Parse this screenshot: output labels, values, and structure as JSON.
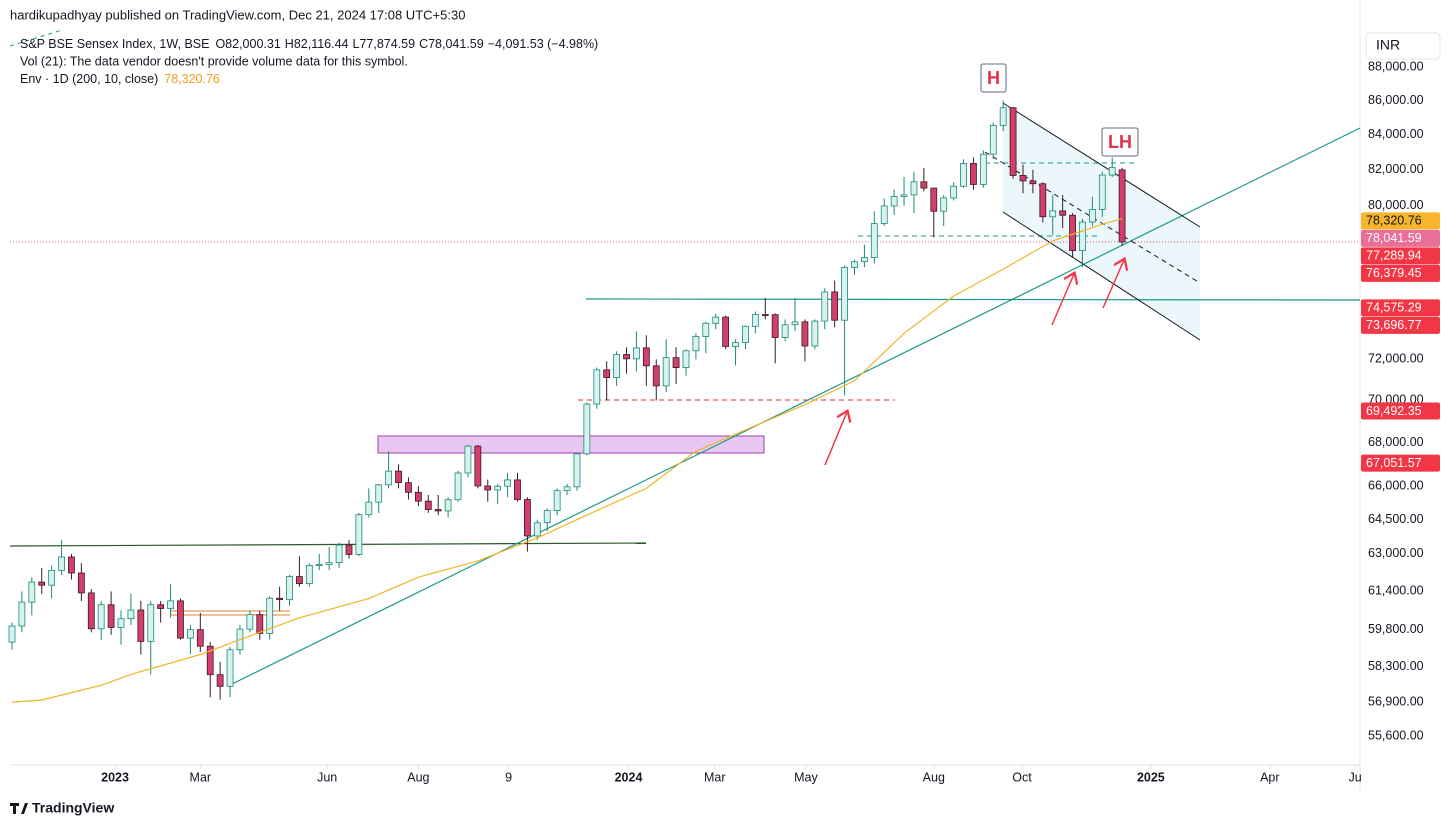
{
  "header": {
    "published": "hardikupadhyay published on TradingView.com, Dec 21, 2024 17:08 UTC+5:30",
    "ohlc": [
      "O82,000.31",
      "H82,116.44",
      "L77,874.59",
      "C78,041.59",
      "−4,091.53 (−4.98%)"
    ],
    "volume": "Vol (21): The data vendor doesn't provide volume data for this symbol.",
    "currency": "INR",
    "logo": "TradingView"
  },
  "chart_data": {
    "type": "candlestick",
    "title": "S&P BSE Sensex Index, 1W, BSE",
    "log_scale": true,
    "grid": false,
    "up_color": "#1b8a7a",
    "up_fill": "#d8f3ef",
    "down_color": "#d23f6b",
    "ylim": [
      54504,
      92140
    ],
    "xlim": [
      -0.2,
      136
    ],
    "yticks": [
      {
        "value": 55600,
        "label": "55,600.00"
      },
      {
        "value": 56900,
        "label": "56,900.00"
      },
      {
        "value": 58300,
        "label": "58,300.00"
      },
      {
        "value": 59800,
        "label": "59,800.00"
      },
      {
        "value": 61400,
        "label": "61,400.00"
      },
      {
        "value": 63000,
        "label": "63,000.00"
      },
      {
        "value": 64500,
        "label": "64,500.00"
      },
      {
        "value": 66000,
        "label": "66,000.00"
      },
      {
        "value": 68000,
        "label": "68,000.00"
      },
      {
        "value": 70000,
        "label": "70,000.00"
      },
      {
        "value": 72000,
        "label": "72,000.00"
      },
      {
        "value": 80000,
        "label": "80,000.00"
      },
      {
        "value": 82000,
        "label": "82,000.00"
      },
      {
        "value": 84000,
        "label": "84,000.00"
      },
      {
        "value": 86000,
        "label": "86,000.00"
      },
      {
        "value": 88000,
        "label": "88,000.00"
      }
    ],
    "xticks": [
      {
        "value": 10.4,
        "label": "2023",
        "bold": true
      },
      {
        "value": 19,
        "label": "Mar"
      },
      {
        "value": 31.8,
        "label": "Jun"
      },
      {
        "value": 41,
        "label": "Aug"
      },
      {
        "value": 50.1,
        "label": "9"
      },
      {
        "value": 62.2,
        "label": "2024",
        "bold": true
      },
      {
        "value": 70.9,
        "label": "Mar"
      },
      {
        "value": 80.1,
        "label": "May"
      },
      {
        "value": 93,
        "label": "Aug"
      },
      {
        "value": 101.9,
        "label": "Oct"
      },
      {
        "value": 114.9,
        "label": "2025",
        "bold": true
      },
      {
        "value": 126.9,
        "label": "Apr"
      },
      {
        "value": 135.5,
        "label": "Ju"
      }
    ],
    "candles": [
      [
        59300,
        60100,
        59000,
        59960
      ],
      [
        59960,
        61400,
        59700,
        60950
      ],
      [
        60950,
        62000,
        60400,
        61795
      ],
      [
        61795,
        62400,
        61300,
        61663
      ],
      [
        61663,
        62500,
        61100,
        62294
      ],
      [
        62294,
        63600,
        62100,
        62868
      ],
      [
        62868,
        63000,
        61900,
        62181
      ],
      [
        62181,
        62600,
        61000,
        61337
      ],
      [
        61337,
        61500,
        59700,
        59845
      ],
      [
        59845,
        61000,
        59400,
        60840
      ],
      [
        60840,
        61400,
        59600,
        59900
      ],
      [
        59900,
        60600,
        59200,
        60261
      ],
      [
        60261,
        61300,
        60000,
        60621
      ],
      [
        60621,
        61000,
        58800,
        59330
      ],
      [
        59330,
        61000,
        58000,
        60841
      ],
      [
        60841,
        61000,
        60100,
        60682
      ],
      [
        60682,
        61700,
        60300,
        61002
      ],
      [
        61002,
        61100,
        59400,
        59463
      ],
      [
        59463,
        60000,
        58800,
        59808
      ],
      [
        59808,
        60500,
        58900,
        59135
      ],
      [
        59135,
        59300,
        57100,
        57989
      ],
      [
        57989,
        58500,
        57000,
        57527
      ],
      [
        57527,
        59100,
        57100,
        58991
      ],
      [
        58991,
        60000,
        58800,
        59832
      ],
      [
        59832,
        60600,
        59700,
        60431
      ],
      [
        60431,
        60600,
        59400,
        59655
      ],
      [
        59655,
        61200,
        59400,
        61112
      ],
      [
        61112,
        61600,
        60600,
        61054
      ],
      [
        61054,
        62100,
        60800,
        62028
      ],
      [
        62028,
        62900,
        61600,
        61730
      ],
      [
        61730,
        62600,
        61600,
        62502
      ],
      [
        62502,
        63000,
        62300,
        62547
      ],
      [
        62547,
        63300,
        62300,
        62625
      ],
      [
        62625,
        63500,
        62400,
        63385
      ],
      [
        63385,
        63600,
        62800,
        62979
      ],
      [
        62979,
        64800,
        62900,
        64719
      ],
      [
        64719,
        65900,
        64600,
        65280
      ],
      [
        65280,
        66100,
        64800,
        66060
      ],
      [
        66060,
        67600,
        65900,
        66684
      ],
      [
        66684,
        67000,
        65900,
        66160
      ],
      [
        66160,
        66400,
        65400,
        65721
      ],
      [
        65721,
        66000,
        65100,
        65323
      ],
      [
        65323,
        65600,
        64800,
        64949
      ],
      [
        64949,
        65600,
        64700,
        64887
      ],
      [
        64887,
        65500,
        64600,
        65387
      ],
      [
        65387,
        66700,
        65300,
        66598
      ],
      [
        66598,
        67900,
        66400,
        67838
      ],
      [
        67838,
        67900,
        65900,
        66009
      ],
      [
        66009,
        66300,
        65300,
        65828
      ],
      [
        65828,
        66100,
        65200,
        65996
      ],
      [
        65996,
        66600,
        65500,
        66283
      ],
      [
        66283,
        66600,
        65300,
        65397
      ],
      [
        65397,
        65500,
        63100,
        63782
      ],
      [
        63782,
        64500,
        63600,
        64363
      ],
      [
        64363,
        65000,
        64000,
        64905
      ],
      [
        64905,
        65900,
        64700,
        65795
      ],
      [
        65795,
        66100,
        65600,
        65970
      ],
      [
        65970,
        67500,
        65800,
        67481
      ],
      [
        67481,
        69900,
        67400,
        69826
      ],
      [
        69826,
        71600,
        69600,
        71484
      ],
      [
        71484,
        71900,
        70000,
        71106
      ],
      [
        71106,
        72400,
        70700,
        72240
      ],
      [
        72240,
        72600,
        71300,
        72026
      ],
      [
        72026,
        73400,
        71400,
        72568
      ],
      [
        72568,
        73200,
        70700,
        71683
      ],
      [
        71683,
        72000,
        70000,
        70701
      ],
      [
        70701,
        73000,
        70400,
        72085
      ],
      [
        72085,
        72600,
        70800,
        71595
      ],
      [
        71595,
        72500,
        71200,
        72426
      ],
      [
        72426,
        73300,
        72000,
        73142
      ],
      [
        73142,
        73900,
        72300,
        73806
      ],
      [
        73806,
        74300,
        73500,
        74119
      ],
      [
        74119,
        74200,
        72500,
        72643
      ],
      [
        72643,
        73000,
        71700,
        72832
      ],
      [
        72832,
        73700,
        72500,
        73651
      ],
      [
        73651,
        74400,
        73300,
        74248
      ],
      [
        74248,
        75100,
        74000,
        74244
      ],
      [
        74244,
        74300,
        71800,
        73088
      ],
      [
        73088,
        74000,
        72900,
        73730
      ],
      [
        73730,
        75100,
        73400,
        73878
      ],
      [
        73878,
        74000,
        71900,
        72664
      ],
      [
        72664,
        74000,
        72500,
        73917
      ],
      [
        73917,
        75600,
        73500,
        75410
      ],
      [
        75410,
        76000,
        73600,
        73961
      ],
      [
        73961,
        76800,
        70234,
        76693
      ],
      [
        76693,
        77100,
        76300,
        76992
      ],
      [
        76992,
        77900,
        76700,
        77209
      ],
      [
        77209,
        79700,
        76900,
        79032
      ],
      [
        79032,
        80400,
        78900,
        79996
      ],
      [
        79996,
        80900,
        79500,
        80519
      ],
      [
        80519,
        81600,
        80000,
        80604
      ],
      [
        80604,
        81900,
        79600,
        81332
      ],
      [
        81332,
        82100,
        80800,
        80981
      ],
      [
        80981,
        81000,
        78300,
        79705
      ],
      [
        79705,
        80600,
        78900,
        80436
      ],
      [
        80436,
        81300,
        80300,
        81086
      ],
      [
        81086,
        82600,
        81000,
        82365
      ],
      [
        82365,
        82700,
        80900,
        81183
      ],
      [
        81183,
        83100,
        81000,
        82890
      ],
      [
        82890,
        84700,
        82600,
        84544
      ],
      [
        84544,
        86000,
        84200,
        85571
      ],
      [
        85571,
        85600,
        81500,
        81688
      ],
      [
        81688,
        82300,
        80700,
        81381
      ],
      [
        81381,
        82000,
        80700,
        81224
      ],
      [
        81224,
        81300,
        79100,
        79402
      ],
      [
        79402,
        80600,
        78400,
        79724
      ],
      [
        79724,
        80600,
        78800,
        79486
      ],
      [
        79486,
        79600,
        77200,
        77580
      ],
      [
        77580,
        79300,
        76700,
        79117
      ],
      [
        79117,
        80500,
        78900,
        79802
      ],
      [
        79802,
        81900,
        79400,
        81709
      ],
      [
        81709,
        82700,
        81600,
        82133
      ],
      [
        82000.31,
        82116.44,
        77874.59,
        78041.59
      ]
    ],
    "series": [
      {
        "name": "Env · 1D (200, 10, close)",
        "color": "#f0b429",
        "x": [
          0,
          3,
          9,
          12,
          19,
          23,
          29,
          36,
          41,
          47,
          53,
          59,
          64,
          69,
          74,
          80,
          85,
          90,
          95,
          100,
          105,
          110,
          112
        ],
        "values": [
          56910,
          56990,
          57570,
          58000,
          58800,
          59400,
          60300,
          61100,
          62000,
          62700,
          63700,
          64900,
          65900,
          67600,
          68600,
          69800,
          70950,
          73300,
          75200,
          76600,
          78100,
          79000,
          79300
        ]
      }
    ],
    "price_labels": [
      {
        "value": 78320.76,
        "label": "78,320.76",
        "color": "#f7b52c",
        "text_color": "#131722"
      },
      {
        "value": 78041.59,
        "label": "78,041.59",
        "color": "#ea6f97",
        "text_color": "#ffffff"
      },
      {
        "value": 77289.94,
        "label": "77,289.94",
        "color": "#f23645",
        "text_color": "#ffffff"
      },
      {
        "value": 76379.45,
        "label": "76,379.45",
        "color": "#f23645",
        "text_color": "#ffffff"
      },
      {
        "value": 74575.29,
        "label": "74,575.29",
        "color": "#f23645",
        "text_color": "#ffffff"
      },
      {
        "value": 73696.77,
        "label": "73,696.77",
        "color": "#f23645",
        "text_color": "#ffffff"
      },
      {
        "value": 69492.35,
        "label": "69,492.35",
        "color": "#f23645",
        "text_color": "#ffffff"
      },
      {
        "value": 67051.57,
        "label": "67,051.57",
        "color": "#f23645",
        "text_color": "#ffffff"
      }
    ],
    "annotations": [
      {
        "text": "H"
      },
      {
        "text": "LH"
      }
    ]
  }
}
